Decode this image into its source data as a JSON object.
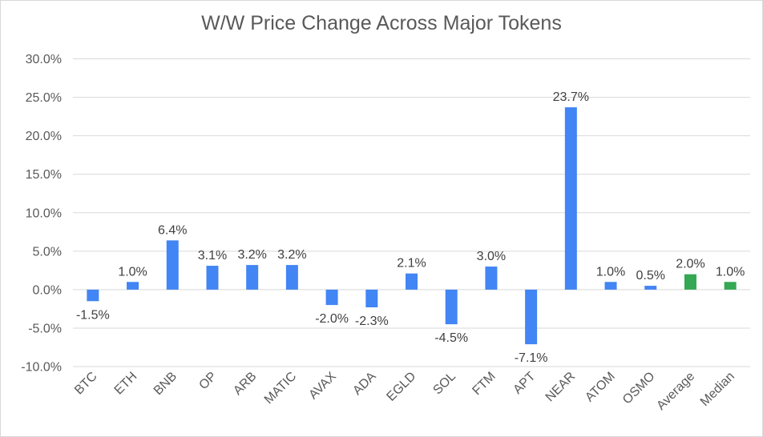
{
  "chart_data": {
    "type": "bar",
    "title": "W/W Price Change Across Major Tokens",
    "xlabel": "",
    "ylabel": "",
    "ylim": [
      -10,
      30
    ],
    "yticks": [
      30,
      25,
      20,
      15,
      10,
      5,
      0,
      -5,
      -10
    ],
    "ytick_labels": [
      "30.0%",
      "25.0%",
      "20.0%",
      "15.0%",
      "10.0%",
      "5.0%",
      "0.0%",
      "-5.0%",
      "-10.0%"
    ],
    "grid": true,
    "legend": "none",
    "categories": [
      "BTC",
      "ETH",
      "BNB",
      "OP",
      "ARB",
      "MATIC",
      "AVAX",
      "ADA",
      "EGLD",
      "SOL",
      "FTM",
      "APT",
      "NEAR",
      "ATOM",
      "OSMO",
      "Average",
      "Median"
    ],
    "values": [
      -1.5,
      1.0,
      6.4,
      3.1,
      3.2,
      3.2,
      -2.0,
      -2.3,
      2.1,
      -4.5,
      3.0,
      -7.1,
      23.7,
      1.0,
      0.5,
      2.0,
      1.0
    ],
    "data_labels": [
      "-1.5%",
      "1.0%",
      "6.4%",
      "3.1%",
      "3.2%",
      "3.2%",
      "-2.0%",
      "-2.3%",
      "2.1%",
      "-4.5%",
      "3.0%",
      "-7.1%",
      "23.7%",
      "1.0%",
      "0.5%",
      "2.0%",
      "1.0%"
    ],
    "colors": {
      "token_bar": "#4285f4",
      "summary_bar": "#34a853"
    },
    "summary_categories": [
      "Average",
      "Median"
    ]
  }
}
